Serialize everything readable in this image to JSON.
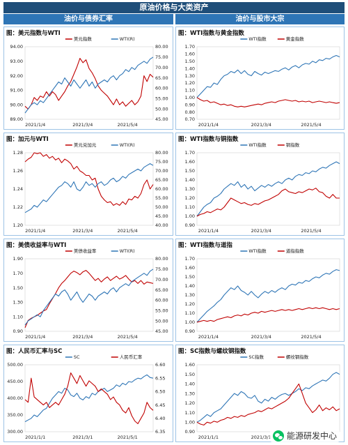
{
  "header": {
    "title": "原油价格与大类资产",
    "left_section": "油价与债券汇率",
    "right_section": "油价与股市大宗"
  },
  "watermark": {
    "text": "能源研发中心",
    "icon": "wechat-icon"
  },
  "colors": {
    "blue": "#2e75b6",
    "red": "#c00000",
    "header": "#1f4e79",
    "subheader": "#2e75b6"
  },
  "chart_data": [
    {
      "id": "usd",
      "type": "line",
      "title": "图：美元指数与WTI",
      "x_ticks": [
        "2021/1/4",
        "2021/3/4",
        "2021/5/4"
      ],
      "y_left": {
        "min": 89,
        "max": 94,
        "ticks": [
          "89.00",
          "90.00",
          "91.00",
          "92.00",
          "93.00",
          "94.00"
        ]
      },
      "y_right": {
        "min": 45,
        "max": 80,
        "ticks": [
          "45.00",
          "50.00",
          "55.00",
          "60.00",
          "65.00",
          "70.00",
          "75.00",
          "80.00"
        ]
      },
      "series": [
        {
          "name": "美元指数",
          "axis": "left",
          "color": "#c00000",
          "values": [
            89.9,
            89.7,
            90.0,
            90.5,
            90.3,
            90.6,
            90.5,
            90.9,
            90.6,
            90.9,
            90.7,
            90.3,
            90.6,
            90.9,
            91.3,
            91.6,
            92.1,
            92.6,
            93.2,
            92.9,
            93.1,
            92.5,
            92.2,
            91.8,
            91.3,
            91.0,
            90.8,
            90.6,
            90.3,
            90.0,
            90.4,
            90.0,
            90.2,
            89.9,
            90.1,
            90.3,
            90.0,
            90.2,
            90.6,
            92.0,
            91.6,
            92.1,
            91.9
          ]
        },
        {
          "name": "WTI(R)",
          "axis": "right",
          "color": "#2e75b6",
          "values": [
            48,
            50,
            52,
            53,
            52,
            54,
            53,
            55,
            57,
            59,
            61,
            63,
            62,
            65,
            63,
            61,
            64,
            62,
            60,
            62,
            64,
            61,
            63,
            60,
            62,
            63,
            64,
            63,
            65,
            66,
            64,
            66,
            67,
            69,
            68,
            70,
            69,
            71,
            72,
            73,
            72,
            74,
            75
          ]
        }
      ]
    },
    {
      "id": "gold",
      "type": "line",
      "title": "图：WTI指数与黄金指数",
      "x_ticks": [
        "2021/1/4",
        "2021/3/4",
        "2021/5/4"
      ],
      "y_left": {
        "min": 0.7,
        "max": 1.7,
        "ticks": [
          "0.70",
          "0.80",
          "0.90",
          "1.00",
          "1.10",
          "1.20",
          "1.30",
          "1.40",
          "1.50",
          "1.60",
          "1.70"
        ]
      },
      "series": [
        {
          "name": "WTI指数",
          "axis": "left",
          "color": "#2e75b6",
          "values": [
            1.0,
            1.05,
            1.1,
            1.15,
            1.14,
            1.2,
            1.18,
            1.25,
            1.3,
            1.32,
            1.36,
            1.34,
            1.38,
            1.33,
            1.37,
            1.32,
            1.3,
            1.36,
            1.33,
            1.31,
            1.35,
            1.33,
            1.35,
            1.37,
            1.36,
            1.39,
            1.41,
            1.38,
            1.42,
            1.44,
            1.41,
            1.45,
            1.47,
            1.46,
            1.5,
            1.48,
            1.52,
            1.51,
            1.54,
            1.53,
            1.56,
            1.58,
            1.56
          ]
        },
        {
          "name": "黄金指数",
          "axis": "left",
          "color": "#c00000",
          "values": [
            1.0,
            0.97,
            0.95,
            0.96,
            0.93,
            0.94,
            0.92,
            0.9,
            0.91,
            0.89,
            0.9,
            0.88,
            0.87,
            0.88,
            0.87,
            0.88,
            0.89,
            0.9,
            0.91,
            0.9,
            0.92,
            0.93,
            0.94,
            0.93,
            0.95,
            0.96,
            0.97,
            0.96,
            0.95,
            0.96,
            0.94,
            0.95,
            0.94,
            0.95,
            0.93,
            0.94,
            0.95,
            0.94,
            0.93,
            0.94,
            0.93,
            0.92,
            0.93
          ]
        }
      ]
    },
    {
      "id": "cad",
      "type": "line",
      "title": "图：加元与WTI",
      "x_ticks": [
        "2021/1/4",
        "2021/3/4",
        "2021/5/4"
      ],
      "y_left": {
        "min": 1.2,
        "max": 1.28,
        "ticks": [
          "1.20",
          "1.22",
          "1.24",
          "1.26",
          "1.28"
        ]
      },
      "y_right": {
        "min": 40,
        "max": 80,
        "ticks": [
          "40.00",
          "45.00",
          "50.00",
          "55.00",
          "60.00",
          "65.00",
          "70.00",
          "75.00",
          "80.00"
        ]
      },
      "series": [
        {
          "name": "美元兑加元",
          "axis": "left",
          "color": "#c00000",
          "values": [
            1.27,
            1.273,
            1.275,
            1.28,
            1.279,
            1.281,
            1.276,
            1.278,
            1.274,
            1.276,
            1.272,
            1.274,
            1.269,
            1.273,
            1.271,
            1.268,
            1.262,
            1.265,
            1.26,
            1.258,
            1.255,
            1.255,
            1.25,
            1.252,
            1.24,
            1.232,
            1.228,
            1.225,
            1.226,
            1.222,
            1.224,
            1.222,
            1.226,
            1.223,
            1.229,
            1.228,
            1.232,
            1.23,
            1.235,
            1.245,
            1.25,
            1.24,
            1.245
          ]
        },
        {
          "name": "WTI(R)",
          "axis": "right",
          "color": "#2e75b6",
          "values": [
            47,
            48,
            49,
            51,
            50,
            52,
            54,
            53,
            55,
            57,
            59,
            61,
            62,
            64,
            63,
            61,
            64,
            60,
            59,
            61,
            64,
            62,
            63,
            61,
            63,
            64,
            62,
            63,
            65,
            66,
            64,
            65,
            67,
            66,
            68,
            69,
            70,
            71,
            70,
            72,
            73,
            74,
            73
          ]
        }
      ]
    },
    {
      "id": "copper",
      "type": "line",
      "title": "图：WTI指数与铜指数",
      "x_ticks": [
        "2021/1/4",
        "2021/3/4",
        "2021/5/4"
      ],
      "y_left": {
        "min": 0.9,
        "max": 1.7,
        "ticks": [
          "0.90",
          "1.00",
          "1.10",
          "1.20",
          "1.30",
          "1.40",
          "1.50",
          "1.60",
          "1.70"
        ]
      },
      "series": [
        {
          "name": "WTI指数",
          "axis": "left",
          "color": "#2e75b6",
          "values": [
            1.0,
            1.05,
            1.1,
            1.13,
            1.15,
            1.2,
            1.22,
            1.25,
            1.3,
            1.33,
            1.36,
            1.34,
            1.38,
            1.32,
            1.35,
            1.3,
            1.33,
            1.28,
            1.31,
            1.34,
            1.32,
            1.35,
            1.33,
            1.36,
            1.38,
            1.36,
            1.4,
            1.42,
            1.4,
            1.44,
            1.46,
            1.45,
            1.48,
            1.47,
            1.5,
            1.49,
            1.52,
            1.54,
            1.53,
            1.56,
            1.58,
            1.6,
            1.58
          ]
        },
        {
          "name": "铜指数",
          "axis": "left",
          "color": "#c00000",
          "values": [
            1.0,
            1.02,
            1.03,
            1.05,
            1.04,
            1.06,
            1.08,
            1.07,
            1.1,
            1.15,
            1.2,
            1.18,
            1.16,
            1.14,
            1.15,
            1.13,
            1.12,
            1.14,
            1.13,
            1.15,
            1.17,
            1.18,
            1.2,
            1.22,
            1.24,
            1.28,
            1.3,
            1.27,
            1.26,
            1.25,
            1.27,
            1.26,
            1.28,
            1.3,
            1.29,
            1.31,
            1.27,
            1.26,
            1.22,
            1.2,
            1.24,
            1.2,
            1.2
          ]
        }
      ]
    },
    {
      "id": "ust",
      "type": "line",
      "title": "图：美债收益率与WTI",
      "x_ticks": [
        "2021/1/4",
        "2021/3/4",
        "2021/5/4"
      ],
      "y_left": {
        "min": 0.9,
        "max": 1.9,
        "ticks": [
          "0.90",
          "1.10",
          "1.30",
          "1.50",
          "1.70",
          "1.90"
        ]
      },
      "y_right": {
        "min": 45,
        "max": 80,
        "ticks": [
          "45.00",
          "50.00",
          "55.00",
          "60.00",
          "65.00",
          "70.00",
          "75.00",
          "80.00"
        ]
      },
      "series": [
        {
          "name": "美债收益率",
          "axis": "left",
          "color": "#c00000",
          "values": [
            0.95,
            1.05,
            1.08,
            1.1,
            1.12,
            1.15,
            1.18,
            1.2,
            1.28,
            1.35,
            1.42,
            1.5,
            1.56,
            1.6,
            1.65,
            1.7,
            1.73,
            1.71,
            1.68,
            1.72,
            1.74,
            1.7,
            1.65,
            1.6,
            1.63,
            1.58,
            1.62,
            1.65,
            1.6,
            1.63,
            1.66,
            1.62,
            1.64,
            1.67,
            1.62,
            1.58,
            1.6,
            1.56,
            1.6,
            1.55,
            1.58,
            1.57,
            1.56
          ]
        },
        {
          "name": "WTI(R)",
          "axis": "right",
          "color": "#2e75b6",
          "values": [
            48,
            50,
            51,
            52,
            53,
            52,
            55,
            57,
            59,
            61,
            63,
            62,
            64,
            65,
            63,
            60,
            62,
            64,
            61,
            59,
            61,
            63,
            62,
            60,
            62,
            63,
            64,
            63,
            65,
            66,
            64,
            66,
            67,
            68,
            67,
            69,
            70,
            71,
            72,
            73,
            72,
            74,
            75
          ]
        }
      ]
    },
    {
      "id": "reits",
      "type": "line",
      "title": "图：WTI指数与道指",
      "x_ticks": [
        "2021/1/4",
        "2021/3/4",
        "2021/5/4"
      ],
      "y_left": {
        "min": 0.9,
        "max": 1.7,
        "ticks": [
          "0.90",
          "1.00",
          "1.10",
          "1.20",
          "1.30",
          "1.40",
          "1.50",
          "1.60",
          "1.70"
        ]
      },
      "series": [
        {
          "name": "WTI指数",
          "axis": "left",
          "color": "#2e75b6",
          "values": [
            1.0,
            1.04,
            1.08,
            1.12,
            1.15,
            1.18,
            1.22,
            1.25,
            1.3,
            1.34,
            1.38,
            1.36,
            1.4,
            1.35,
            1.33,
            1.3,
            1.34,
            1.3,
            1.27,
            1.31,
            1.34,
            1.32,
            1.35,
            1.33,
            1.36,
            1.38,
            1.36,
            1.4,
            1.42,
            1.41,
            1.44,
            1.43,
            1.46,
            1.45,
            1.48,
            1.5,
            1.49,
            1.52,
            1.54,
            1.53,
            1.56,
            1.58,
            1.57
          ]
        },
        {
          "name": "道指指数",
          "axis": "left",
          "color": "#c00000",
          "values": [
            1.0,
            1.01,
            1.02,
            1.01,
            1.02,
            1.01,
            1.03,
            1.04,
            1.05,
            1.06,
            1.05,
            1.07,
            1.08,
            1.07,
            1.09,
            1.08,
            1.1,
            1.11,
            1.1,
            1.12,
            1.11,
            1.12,
            1.13,
            1.12,
            1.13,
            1.14,
            1.13,
            1.14,
            1.13,
            1.14,
            1.15,
            1.14,
            1.15,
            1.16,
            1.15,
            1.16,
            1.15,
            1.16,
            1.15,
            1.14,
            1.15,
            1.14,
            1.15
          ]
        }
      ]
    },
    {
      "id": "rmb",
      "type": "line",
      "title": "图：人民币汇率与SC",
      "x_ticks": [
        "2021/1/1",
        "2021/3/1",
        "2021/5/1"
      ],
      "y_left": {
        "min": 300,
        "max": 500,
        "ticks": [
          "300.00",
          "350.00",
          "400.00",
          "450.00",
          "500.00"
        ]
      },
      "y_right": {
        "min": 6.35,
        "max": 6.6,
        "ticks": [
          "6.35",
          "6.40",
          "6.45",
          "6.50",
          "6.55",
          "6.60"
        ]
      },
      "series": [
        {
          "name": "SC",
          "axis": "left",
          "color": "#2e75b6",
          "values": [
            330,
            335,
            340,
            350,
            345,
            355,
            365,
            370,
            385,
            400,
            410,
            420,
            415,
            430,
            425,
            410,
            405,
            415,
            400,
            395,
            405,
            400,
            415,
            410,
            420,
            425,
            430,
            420,
            425,
            430,
            440,
            435,
            445,
            440,
            450,
            448,
            455,
            460,
            458,
            465,
            470,
            462,
            460
          ]
        },
        {
          "name": "人民币汇率",
          "axis": "right",
          "color": "#c00000",
          "values": [
            6.47,
            6.46,
            6.55,
            6.48,
            6.47,
            6.46,
            6.45,
            6.46,
            6.44,
            6.45,
            6.46,
            6.45,
            6.47,
            6.49,
            6.52,
            6.57,
            6.55,
            6.53,
            6.56,
            6.54,
            6.52,
            6.54,
            6.53,
            6.52,
            6.5,
            6.51,
            6.5,
            6.49,
            6.47,
            6.48,
            6.46,
            6.45,
            6.43,
            6.42,
            6.44,
            6.41,
            6.39,
            6.38,
            6.4,
            6.42,
            6.46,
            6.44,
            6.43
          ]
        }
      ]
    },
    {
      "id": "rebar",
      "type": "line",
      "title": "图：SC指数与螺纹钢指数",
      "x_ticks": [
        "2021/1/1",
        "2021/3/1",
        "2021/5/1"
      ],
      "y_left": {
        "min": 0.9,
        "max": 1.6,
        "ticks": [
          "0.90",
          "1.00",
          "1.10",
          "1.20",
          "1.30",
          "1.40",
          "1.50",
          "1.60"
        ]
      },
      "series": [
        {
          "name": "SC指数",
          "axis": "left",
          "color": "#2e75b6",
          "values": [
            1.0,
            1.02,
            1.05,
            1.08,
            1.06,
            1.1,
            1.12,
            1.14,
            1.18,
            1.22,
            1.26,
            1.3,
            1.28,
            1.32,
            1.3,
            1.26,
            1.25,
            1.28,
            1.22,
            1.2,
            1.24,
            1.22,
            1.26,
            1.24,
            1.27,
            1.29,
            1.3,
            1.28,
            1.3,
            1.32,
            1.35,
            1.33,
            1.36,
            1.35,
            1.38,
            1.4,
            1.42,
            1.44,
            1.43,
            1.46,
            1.5,
            1.52,
            1.5
          ]
        },
        {
          "name": "螺纹钢指数",
          "axis": "left",
          "color": "#c00000",
          "values": [
            1.0,
            0.98,
            0.97,
            1.0,
            0.99,
            1.01,
            1.0,
            1.02,
            1.03,
            1.05,
            1.04,
            1.06,
            1.05,
            1.07,
            1.06,
            1.08,
            1.09,
            1.1,
            1.12,
            1.11,
            1.13,
            1.15,
            1.14,
            1.16,
            1.18,
            1.2,
            1.22,
            1.25,
            1.3,
            1.35,
            1.4,
            1.3,
            1.2,
            1.15,
            1.1,
            1.13,
            1.18,
            1.12,
            1.15,
            1.13,
            1.16,
            1.12,
            1.14
          ]
        }
      ]
    }
  ]
}
